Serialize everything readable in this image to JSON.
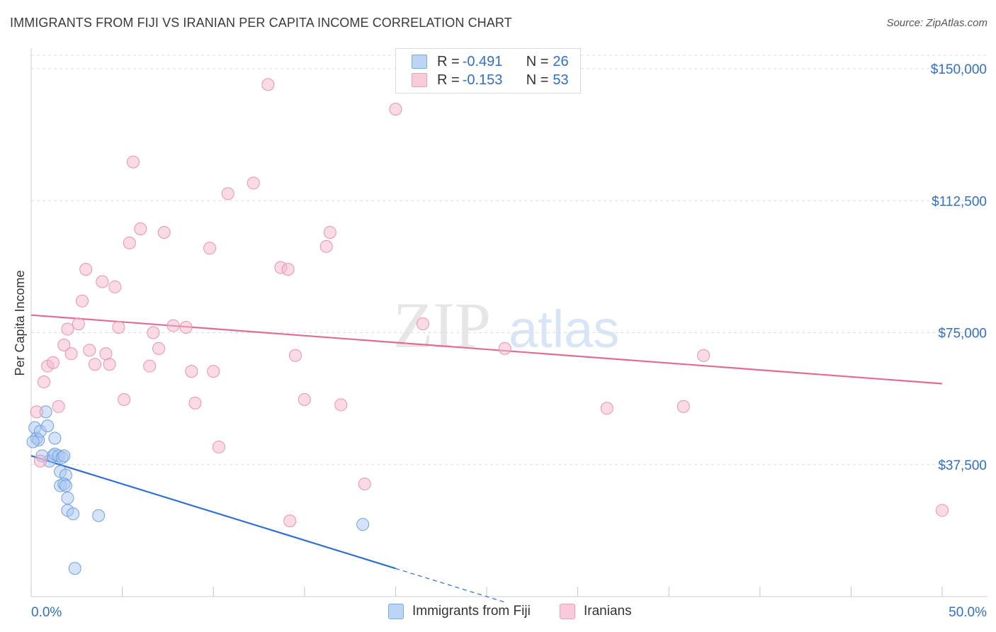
{
  "title": "IMMIGRANTS FROM FIJI VS IRANIAN PER CAPITA INCOME CORRELATION CHART",
  "source": "Source: ZipAtlas.com",
  "watermark": {
    "zip": "ZIP",
    "atlas": "atlas"
  },
  "legend_top": {
    "rows": [
      {
        "r_label": "R = ",
        "r_value": "-0.491",
        "n_label": "N = ",
        "n_value": "26",
        "color": "#a9c8f2"
      },
      {
        "r_label": "R = ",
        "r_value": "-0.153",
        "n_label": "N = ",
        "n_value": "53",
        "color": "#f5b8cc"
      }
    ]
  },
  "legend_bottom": [
    {
      "label": "Immigrants from Fiji",
      "color": "#a9c8f2"
    },
    {
      "label": "Iranians",
      "color": "#f5b8cc"
    }
  ],
  "chart_data": {
    "type": "scatter",
    "title": "IMMIGRANTS FROM FIJI VS IRANIAN PER CAPITA INCOME CORRELATION CHART",
    "xlabel": "",
    "ylabel": "Per Capita Income",
    "xlim": [
      0,
      50
    ],
    "ylim": [
      0,
      155000
    ],
    "x_tick_labels": [
      "0.0%",
      "50.0%"
    ],
    "y_ticks": [
      37500,
      75000,
      112500,
      150000
    ],
    "y_tick_labels": [
      "$37,500",
      "$75,000",
      "$112,500",
      "$150,000"
    ],
    "grid": true,
    "legend_position": "top-center",
    "series": [
      {
        "name": "Immigrants from Fiji",
        "color": "#a9c8f2",
        "edge_color": "#6fa0e0",
        "trend_color": "#2d6fd6",
        "trend": {
          "x0": 0,
          "y0": 40000,
          "x1": 20,
          "y1": 8000,
          "dash_to_x": 26
        },
        "points": [
          [
            0.2,
            48000
          ],
          [
            0.3,
            45000
          ],
          [
            0.4,
            44500
          ],
          [
            0.5,
            47000
          ],
          [
            0.8,
            52500
          ],
          [
            0.9,
            48500
          ],
          [
            1.0,
            38500
          ],
          [
            1.2,
            40000
          ],
          [
            1.3,
            40500
          ],
          [
            1.3,
            45000
          ],
          [
            1.5,
            40000
          ],
          [
            1.6,
            35500
          ],
          [
            1.7,
            39500
          ],
          [
            1.8,
            40000
          ],
          [
            1.9,
            34500
          ],
          [
            1.6,
            31500
          ],
          [
            1.8,
            32000
          ],
          [
            1.9,
            31500
          ],
          [
            2.0,
            28000
          ],
          [
            2.0,
            24500
          ],
          [
            2.3,
            23500
          ],
          [
            3.7,
            23000
          ],
          [
            2.4,
            8000
          ],
          [
            18.2,
            20500
          ],
          [
            0.1,
            44000
          ],
          [
            0.6,
            40000
          ]
        ]
      },
      {
        "name": "Iranians",
        "color": "#f5b8cc",
        "edge_color": "#ec91b0",
        "trend_color": "#e06b96",
        "trend": {
          "x0": 0,
          "y0": 80000,
          "x1": 50,
          "y1": 60500
        },
        "points": [
          [
            0.3,
            52500
          ],
          [
            0.5,
            38500
          ],
          [
            0.7,
            61000
          ],
          [
            0.9,
            65500
          ],
          [
            1.2,
            66500
          ],
          [
            1.5,
            54000
          ],
          [
            1.8,
            71500
          ],
          [
            2.0,
            76000
          ],
          [
            2.2,
            69000
          ],
          [
            2.6,
            77500
          ],
          [
            2.8,
            84000
          ],
          [
            3.0,
            93000
          ],
          [
            3.2,
            70000
          ],
          [
            3.5,
            66000
          ],
          [
            3.9,
            89500
          ],
          [
            4.1,
            69000
          ],
          [
            4.3,
            66000
          ],
          [
            4.6,
            88000
          ],
          [
            4.8,
            76500
          ],
          [
            5.1,
            56000
          ],
          [
            5.4,
            100500
          ],
          [
            5.6,
            123500
          ],
          [
            6.0,
            104500
          ],
          [
            6.5,
            65500
          ],
          [
            6.7,
            75000
          ],
          [
            7.0,
            70500
          ],
          [
            7.3,
            103500
          ],
          [
            7.8,
            77000
          ],
          [
            8.5,
            76500
          ],
          [
            8.8,
            64000
          ],
          [
            9.0,
            55000
          ],
          [
            9.8,
            99000
          ],
          [
            10.0,
            64000
          ],
          [
            10.3,
            42500
          ],
          [
            10.8,
            114500
          ],
          [
            12.2,
            117500
          ],
          [
            13.0,
            145500
          ],
          [
            13.7,
            93500
          ],
          [
            14.1,
            93000
          ],
          [
            14.2,
            21500
          ],
          [
            14.5,
            68500
          ],
          [
            15.0,
            56000
          ],
          [
            16.2,
            99500
          ],
          [
            16.4,
            103500
          ],
          [
            17.0,
            54500
          ],
          [
            18.3,
            32000
          ],
          [
            20.0,
            138500
          ],
          [
            21.5,
            77500
          ],
          [
            26.0,
            70500
          ],
          [
            31.6,
            53500
          ],
          [
            35.8,
            54000
          ],
          [
            36.9,
            68500
          ],
          [
            50.0,
            24500
          ]
        ]
      }
    ]
  }
}
